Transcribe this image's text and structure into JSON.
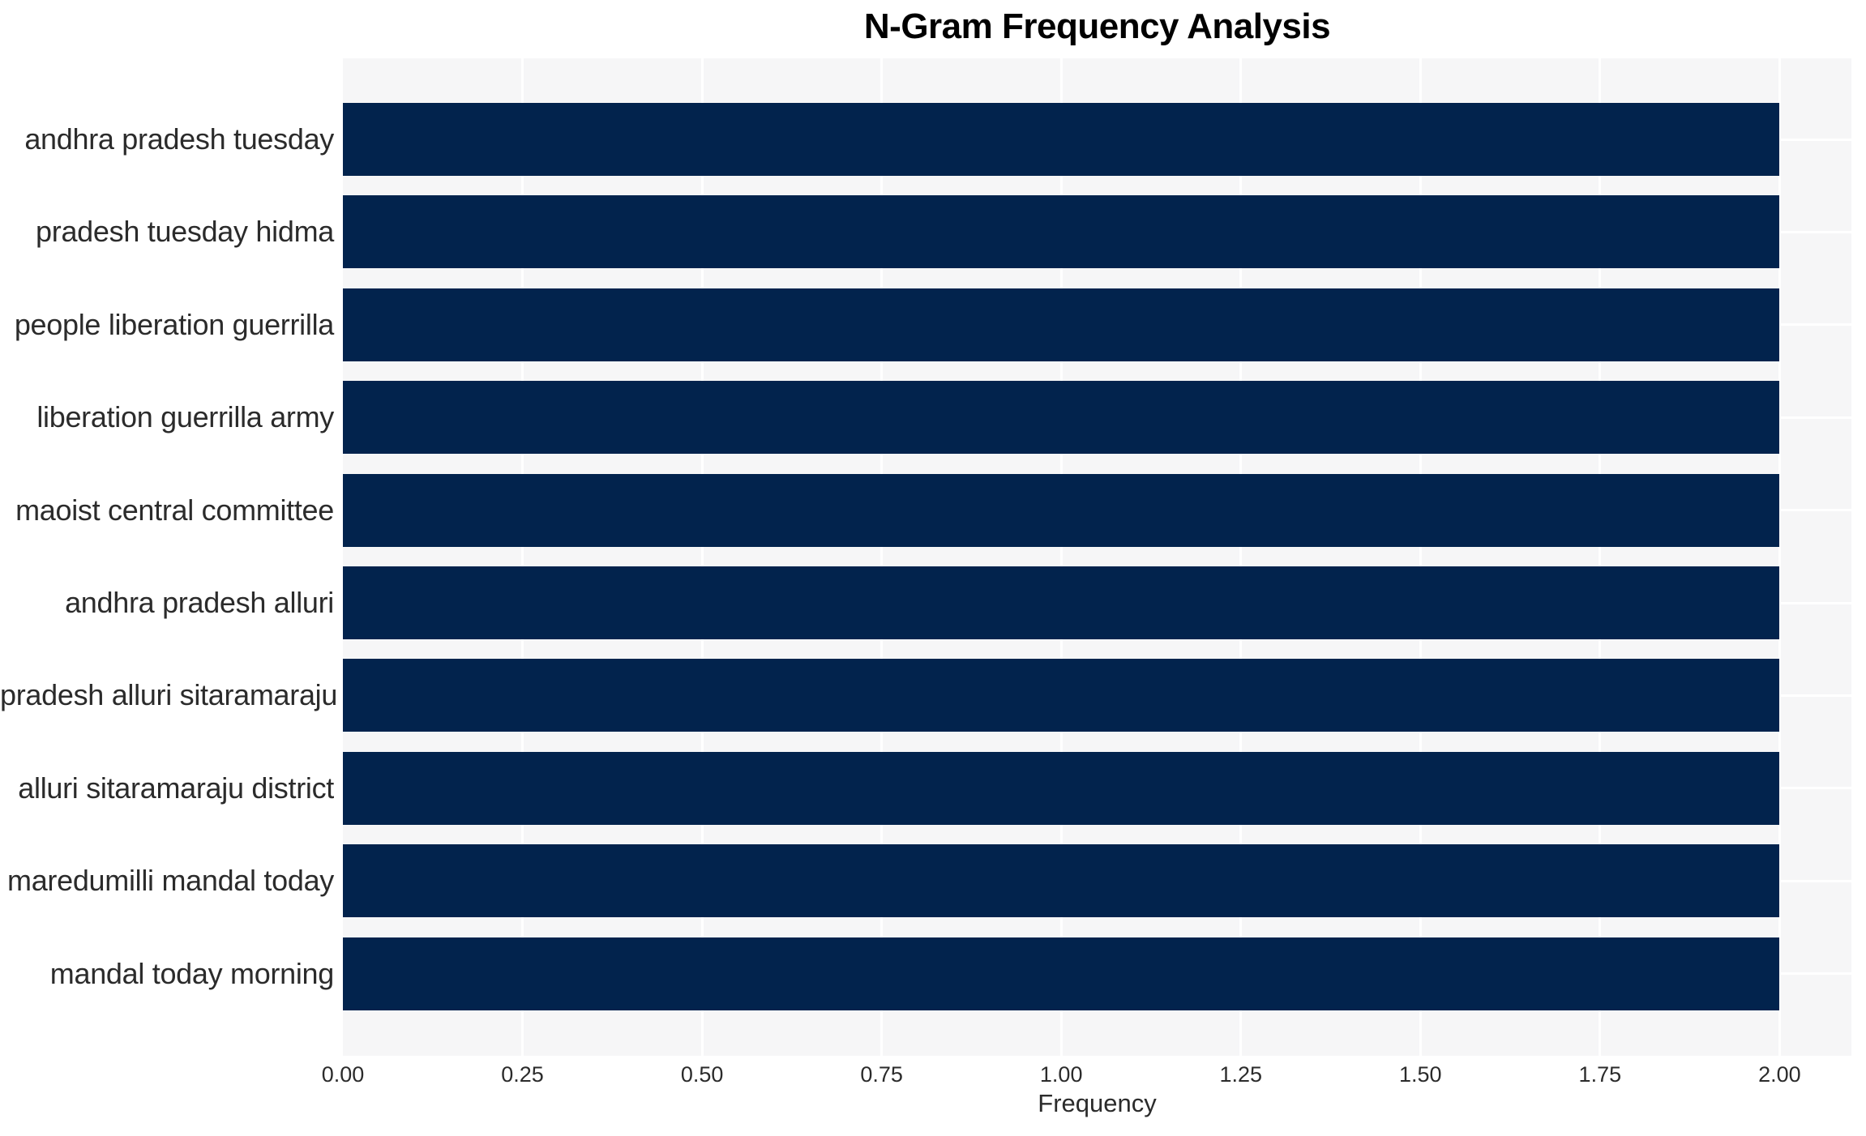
{
  "chart_data": {
    "type": "bar",
    "orientation": "horizontal",
    "title": "N-Gram Frequency Analysis",
    "xlabel": "Frequency",
    "ylabel": "",
    "categories": [
      "andhra pradesh tuesday",
      "pradesh tuesday hidma",
      "people liberation guerrilla",
      "liberation guerrilla army",
      "maoist central committee",
      "andhra pradesh alluri",
      "pradesh alluri sitaramaraju",
      "alluri sitaramaraju district",
      "maredumilli mandal today",
      "mandal today morning"
    ],
    "values": [
      2,
      2,
      2,
      2,
      2,
      2,
      2,
      2,
      2,
      2
    ],
    "xlim": [
      0,
      2.1
    ],
    "xticks": [
      0.0,
      0.25,
      0.5,
      0.75,
      1.0,
      1.25,
      1.5,
      1.75,
      2.0
    ],
    "xtick_labels": [
      "0.00",
      "0.25",
      "0.50",
      "0.75",
      "1.00",
      "1.25",
      "1.50",
      "1.75",
      "2.00"
    ],
    "grid": true,
    "legend": false,
    "colors": {
      "bar": "#02234d",
      "panel_bg": "#f6f6f7",
      "grid": "#ffffff",
      "title": "#000000",
      "tick_text": "#2b2b2b",
      "figure_bg": "#ffffff"
    }
  }
}
